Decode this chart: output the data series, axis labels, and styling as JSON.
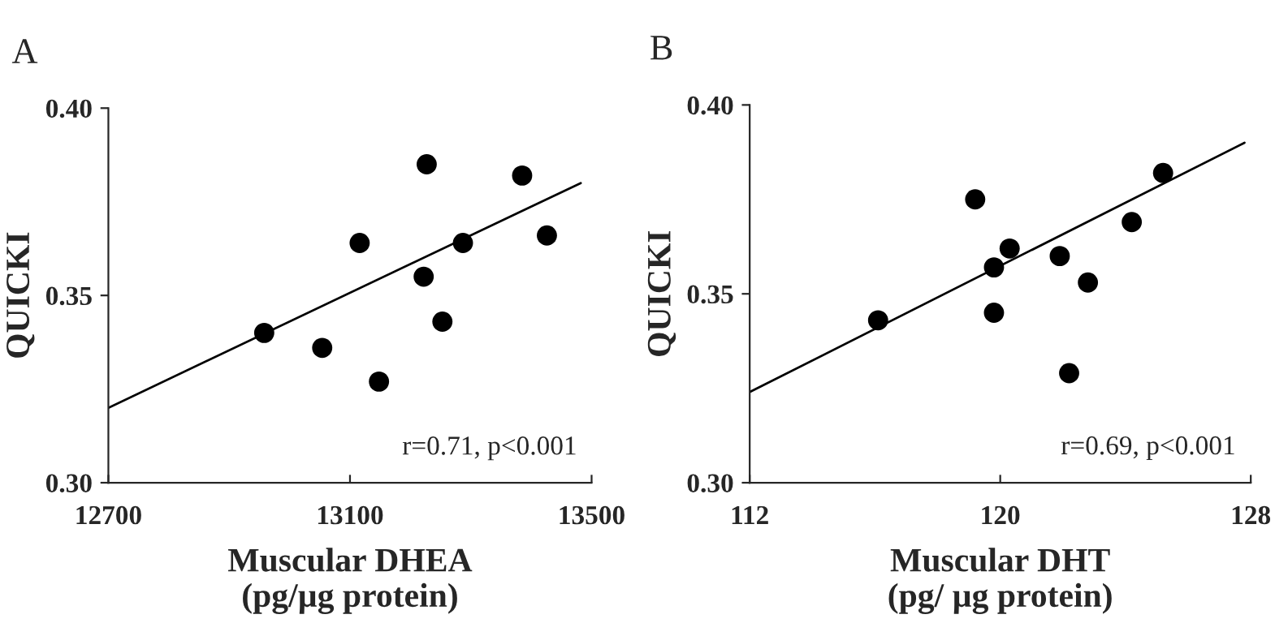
{
  "chart_data": [
    {
      "type": "scatter",
      "title": "A",
      "xlabel": "Muscular DHEA\n(pg/µg protein)",
      "ylabel": "QUICKI",
      "xlim": [
        12700,
        13500
      ],
      "xticks": [
        12700,
        13100,
        13500
      ],
      "ylim": [
        0.3,
        0.4
      ],
      "yticks": [
        {
          "value": 0.3,
          "label": "0.30"
        },
        {
          "value": 0.35,
          "label": "0.35"
        },
        {
          "value": 0.4,
          "label": "0.40"
        }
      ],
      "grid": false,
      "legend": false,
      "annotations": [
        "r=0.71, p<0.001"
      ],
      "series": [
        {
          "marker": "circle",
          "color": "#000000",
          "x": [
            12958,
            13054,
            13116,
            13148,
            13227,
            13222,
            13253,
            13287,
            13385,
            13426
          ],
          "values": [
            0.34,
            0.336,
            0.364,
            0.327,
            0.385,
            0.355,
            0.343,
            0.364,
            0.382,
            0.366
          ]
        },
        {
          "type": "line",
          "marker": "none",
          "color": "#000000",
          "x": [
            12700,
            13482
          ],
          "values": [
            0.32,
            0.38
          ]
        }
      ]
    },
    {
      "type": "scatter",
      "title": "B",
      "xlabel": "Muscular DHT\n(pg/ µg protein)",
      "ylabel": "QUICKI",
      "xlim": [
        112,
        128
      ],
      "xticks": [
        112,
        120,
        128
      ],
      "ylim": [
        0.3,
        0.4
      ],
      "yticks": [
        {
          "value": 0.3,
          "label": "0.30"
        },
        {
          "value": 0.35,
          "label": "0.35"
        },
        {
          "value": 0.4,
          "label": "0.40"
        }
      ],
      "grid": false,
      "legend": false,
      "annotations": [
        "r=0.69, p<0.001"
      ],
      "series": [
        {
          "marker": "circle",
          "color": "#000000",
          "x": [
            116.1,
            119.2,
            120.3,
            119.8,
            119.8,
            121.9,
            122.8,
            122.2,
            124.2,
            125.2
          ],
          "values": [
            0.343,
            0.375,
            0.362,
            0.357,
            0.345,
            0.36,
            0.353,
            0.329,
            0.369,
            0.382
          ]
        },
        {
          "type": "line",
          "marker": "none",
          "color": "#000000",
          "x": [
            112,
            127.8
          ],
          "values": [
            0.324,
            0.39
          ]
        }
      ]
    }
  ]
}
